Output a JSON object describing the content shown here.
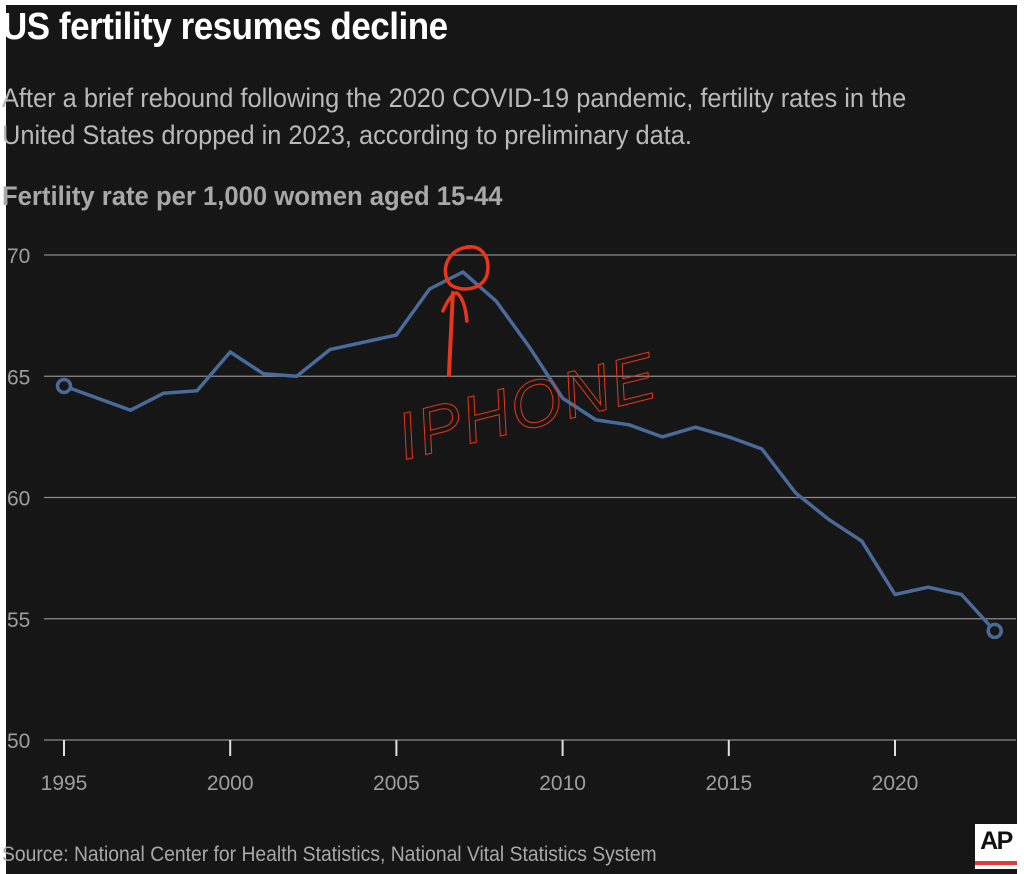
{
  "header": {
    "title": "US fertility resumes decline",
    "subtitle": "After a brief rebound following the 2020 COVID-19 pandemic, fertility rates in the United States dropped in 2023, according to preliminary data.",
    "y_axis_title": "Fertility rate per 1,000 women aged 15-44"
  },
  "footer": {
    "source": "Source: National Center for Health Statistics, National Vital Statistics System",
    "logo": "AP"
  },
  "colors": {
    "background": "#161616",
    "line": "#4a6a99",
    "gridline": "#8a8a8a",
    "annotation": "#e8361c",
    "text_primary": "#ffffff",
    "text_secondary": "#b9b9b9"
  },
  "chart_data": {
    "type": "line",
    "title": "US fertility resumes decline",
    "subtitle": "After a brief rebound following the 2020 COVID-19 pandemic, fertility rates in the United States dropped in 2023, according to preliminary data.",
    "xlabel": "",
    "ylabel": "Fertility rate per 1,000 women aged 15-44",
    "xlim": [
      1995,
      2023
    ],
    "ylim": [
      50,
      70
    ],
    "x_ticks": [
      1995,
      2000,
      2005,
      2010,
      2015,
      2020
    ],
    "x_tick_labels": [
      "1995",
      "2000",
      "2005",
      "2010",
      "2015",
      "2020"
    ],
    "y_ticks": [
      50,
      55,
      60,
      65,
      70
    ],
    "y_tick_labels": [
      "50",
      "55",
      "60",
      "65",
      "70"
    ],
    "grid": "horizontal",
    "legend": "none",
    "series": [
      {
        "name": "Fertility rate",
        "x": [
          1995,
          1997,
          1998,
          1999,
          2000,
          2001,
          2002,
          2003,
          2005,
          2006,
          2007,
          2008,
          2009,
          2010,
          2011,
          2012,
          2013,
          2014,
          2015,
          2016,
          2017,
          2018,
          2019,
          2020,
          2021,
          2022,
          2023
        ],
        "values": [
          64.6,
          63.6,
          64.3,
          64.4,
          66.0,
          65.1,
          65.0,
          66.1,
          66.7,
          68.6,
          69.3,
          68.1,
          66.2,
          64.1,
          63.2,
          63.0,
          62.5,
          62.9,
          62.5,
          62.0,
          60.2,
          59.1,
          58.2,
          56.0,
          56.3,
          56.0,
          54.5
        ],
        "endpoint_markers": [
          1995,
          2023
        ]
      }
    ],
    "annotations": [
      {
        "text": "IPHONE",
        "type": "handwritten",
        "x": 2007,
        "y": 69.3,
        "shape": "circle-with-arrow"
      }
    ]
  }
}
